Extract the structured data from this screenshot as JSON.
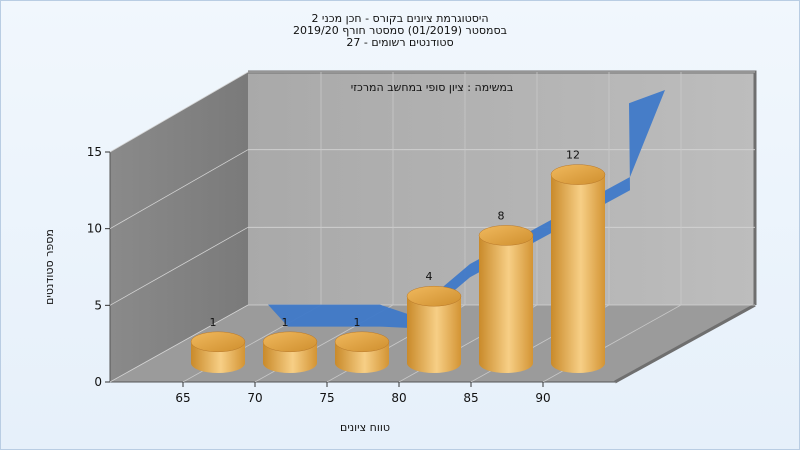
{
  "chart_data": {
    "type": "bar",
    "title_lines": [
      "היסטוגרמת ציונים בקורס - חכן מכני 2",
      "בסמסטר  (01/2019)  סמסטר חורף 2019/20",
      "סטודנטים רשומים - 27"
    ],
    "annotation": "במשימה : ציון סופי במחשב המרכזי",
    "xlabel": "טווח ציונים",
    "ylabel": "מספר סטודנטים",
    "x_ticks": [
      "65",
      "70",
      "75",
      "80",
      "85",
      "90"
    ],
    "y_ticks": [
      "0",
      "5",
      "10",
      "15"
    ],
    "ylim": [
      0,
      15
    ],
    "values": [
      1,
      1,
      1,
      4,
      8,
      12
    ],
    "value_labels": [
      "1",
      "1",
      "1",
      "4",
      "8",
      "12"
    ],
    "curve_values": [
      1.2,
      1.2,
      1.2,
      0.5,
      4,
      10,
      16
    ],
    "colors": {
      "bar_light": "#f7cf86",
      "bar_dark": "#c98a2a",
      "bar_top": "#e2a24a",
      "curve": "#3f79c8",
      "back_wall": "#b3b3b3",
      "left_wall": "#8e8e8e",
      "floor": "#9e9e9e"
    }
  }
}
